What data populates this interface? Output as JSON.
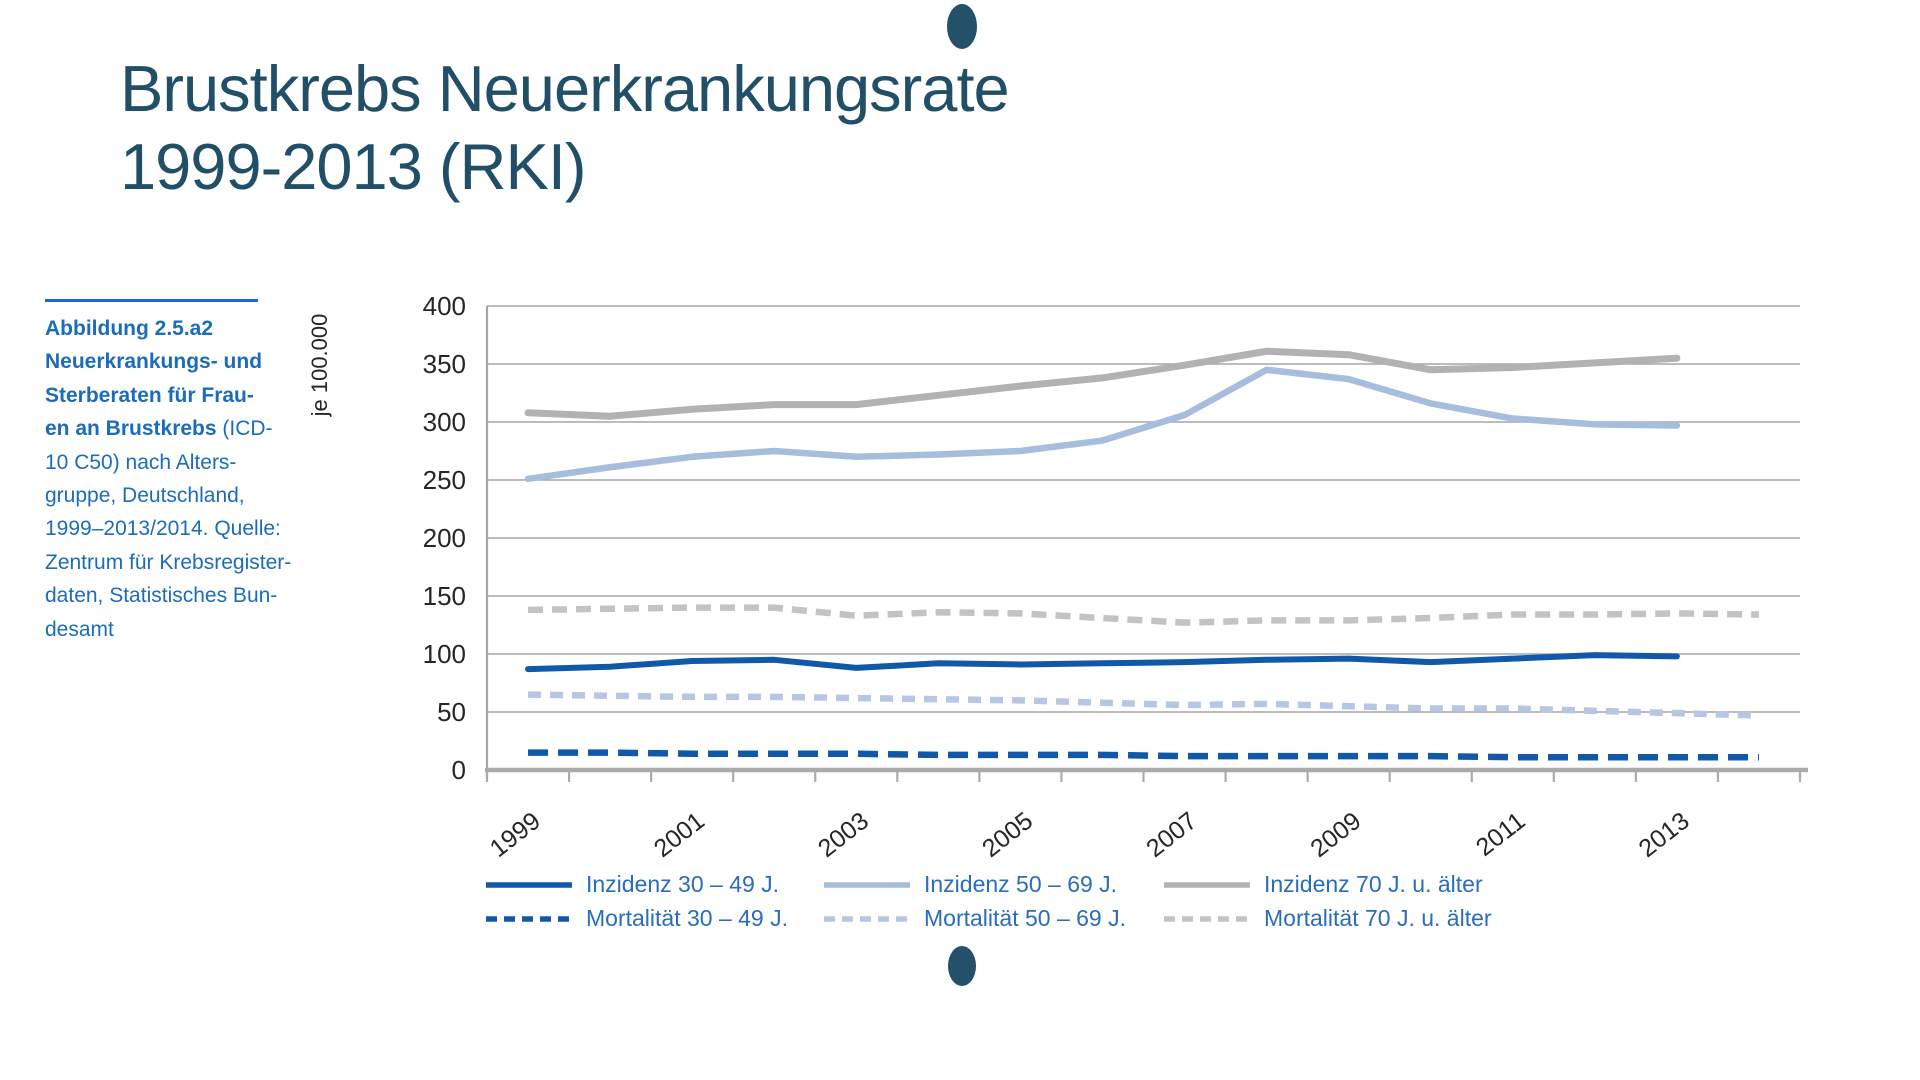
{
  "title": {
    "line1": "Brustkrebs Neuerkrankungsrate",
    "line2": "1999-2013 (RKI)"
  },
  "caption": {
    "lines": [
      {
        "b": "Abbildung 2.5.a2",
        "r": ""
      },
      {
        "b": "Neuerkrankungs- und",
        "r": ""
      },
      {
        "b": "Sterberaten für Frau-",
        "r": ""
      },
      {
        "b": "en an Brustkrebs",
        "r": " (ICD-"
      },
      {
        "b": "",
        "r": "10 C50) nach Alters-"
      },
      {
        "b": "",
        "r": "gruppe, Deutschland,"
      },
      {
        "b": "",
        "r": "1999–2013/2014. Quelle:"
      },
      {
        "b": "",
        "r": "Zentrum für Krebsregister-"
      },
      {
        "b": "",
        "r": "daten, Statistisches Bun-"
      },
      {
        "b": "",
        "r": "desamt"
      }
    ]
  },
  "colors": {
    "title": "#214f68",
    "decor_dot": "#24506a",
    "caption_blue": "#1b6cba",
    "legend_text": "#2a6db8",
    "axis_text": "#262626",
    "grid": "#a6a6a6",
    "dark_blue": "#1159a8",
    "light_blue": "#a6bddd",
    "gray_solid": "#b2b2b2",
    "light_blue_dash": "#b5c7e2",
    "gray_dash": "#c3c3c3"
  },
  "chart_data": {
    "type": "line",
    "title": "",
    "xlabel": "",
    "ylabel": "je 100.000",
    "ylim": [
      0,
      400
    ],
    "ytick_step": 50,
    "yticks": [
      400,
      350,
      300,
      250,
      200,
      150,
      100,
      50,
      0
    ],
    "grid": true,
    "legend_position": "bottom",
    "categories": [
      "1999",
      "2000",
      "2001",
      "2002",
      "2003",
      "2004",
      "2005",
      "2006",
      "2007",
      "2008",
      "2009",
      "2010",
      "2011",
      "2012",
      "2013",
      "2014"
    ],
    "xtick_labels": [
      "1999",
      "2001",
      "2003",
      "2005",
      "2007",
      "2009",
      "2011",
      "2013"
    ],
    "series": [
      {
        "name": "Inzidenz 30 – 49 J.",
        "color": "#1159a8",
        "dash": null,
        "width": 6,
        "values": [
          87,
          89,
          94,
          95,
          88,
          92,
          91,
          92,
          93,
          95,
          96,
          93,
          96,
          99,
          98,
          null
        ]
      },
      {
        "name": "Inzidenz 50 – 69 J.",
        "color": "#a6bddd",
        "dash": null,
        "width": 6.5,
        "values": [
          251,
          261,
          270,
          275,
          270,
          272,
          275,
          284,
          306,
          345,
          337,
          316,
          303,
          298,
          297,
          null
        ]
      },
      {
        "name": "Inzidenz 70 J. u. älter",
        "color": "#b2b2b2",
        "dash": null,
        "width": 7,
        "values": [
          308,
          305,
          311,
          315,
          315,
          323,
          331,
          338,
          349,
          361,
          358,
          345,
          347,
          351,
          355,
          null
        ]
      },
      {
        "name": "Mortalität 30 – 49 J.",
        "color": "#1159a8",
        "dash": "20 10",
        "width": 6.5,
        "values": [
          15,
          15,
          14,
          14,
          14,
          13,
          13,
          13,
          12,
          12,
          12,
          12,
          11,
          11,
          11,
          11
        ]
      },
      {
        "name": "Mortalität 50 – 69 J.",
        "color": "#b5c7e2",
        "dash": "13 9",
        "width": 6.5,
        "values": [
          65,
          64,
          63,
          63,
          62,
          61,
          60,
          58,
          56,
          57,
          55,
          53,
          53,
          51,
          49,
          47
        ]
      },
      {
        "name": "Mortalität 70 J. u. älter",
        "color": "#c3c3c3",
        "dash": "15 9",
        "width": 6.5,
        "values": [
          138,
          139,
          140,
          140,
          133,
          136,
          135,
          131,
          127,
          129,
          129,
          131,
          134,
          134,
          135,
          134
        ]
      }
    ]
  }
}
